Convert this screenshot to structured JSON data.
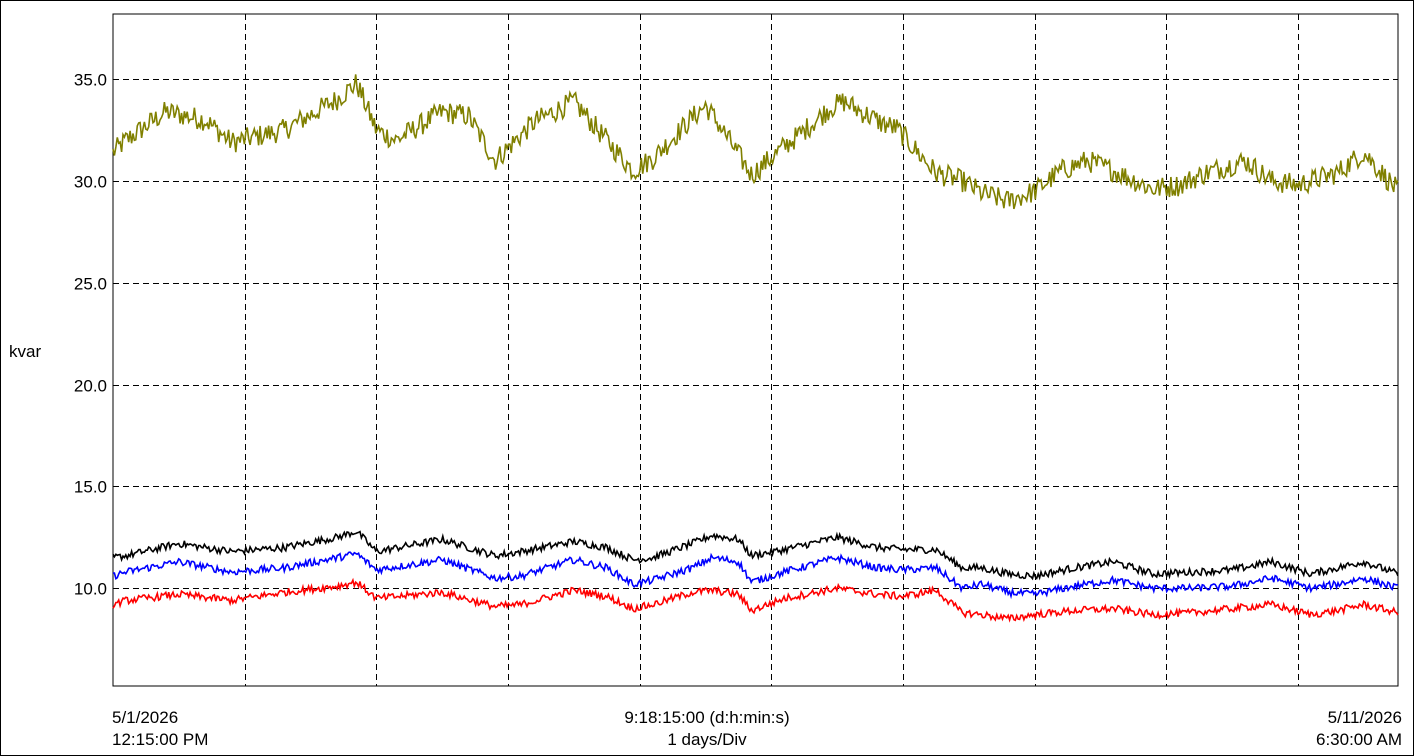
{
  "chart_data": {
    "type": "line",
    "ylabel": "kvar",
    "ylim": [
      5.2,
      38.2
    ],
    "yticks": [
      "35.0",
      "30.0",
      "25.0",
      "20.0",
      "15.0",
      "10.0"
    ],
    "ytick_values": [
      35,
      30,
      25,
      20,
      15,
      10
    ],
    "x_start": {
      "date": "5/1/2026",
      "time": "12:15:00 PM"
    },
    "x_end": {
      "date": "5/11/2026",
      "time": "6:30:00 AM"
    },
    "x_span": "9:18:15:00 (d:h:min:s)",
    "x_division": "1 days/Div",
    "x_span_days": 9.7604,
    "grid": true,
    "series": [
      {
        "color": "#808000",
        "days": [
          0.0,
          0.1,
          0.4,
          0.7,
          0.9,
          1.3,
          1.7,
          1.85,
          2.0,
          2.15,
          2.5,
          2.7,
          2.9,
          3.2,
          3.5,
          3.75,
          3.95,
          4.1,
          4.4,
          4.5,
          4.6,
          4.85,
          5.1,
          5.2,
          5.45,
          5.55,
          5.85,
          5.95,
          6.25,
          6.45,
          6.6,
          6.8,
          7.0,
          7.2,
          7.4,
          7.6,
          7.9,
          8.1,
          8.3,
          8.6,
          8.8,
          9.0,
          9.3,
          9.5,
          9.76
        ],
        "values": [
          31.4,
          32.0,
          33.4,
          33.0,
          31.9,
          32.5,
          34.0,
          34.8,
          32.5,
          32.0,
          33.4,
          33.2,
          31.0,
          32.9,
          33.9,
          32.0,
          30.5,
          31.1,
          33.1,
          33.7,
          32.8,
          30.3,
          31.7,
          32.2,
          33.6,
          33.9,
          32.8,
          32.6,
          30.4,
          30.0,
          29.4,
          29.0,
          29.5,
          30.5,
          31.0,
          30.5,
          29.6,
          29.8,
          30.4,
          31.0,
          30.0,
          29.8,
          30.4,
          31.4,
          29.5
        ]
      },
      {
        "color": "#000000",
        "days": [
          0.0,
          0.1,
          0.5,
          0.9,
          1.3,
          1.7,
          1.85,
          2.0,
          2.5,
          2.9,
          3.1,
          3.5,
          3.75,
          3.95,
          4.1,
          4.4,
          4.55,
          4.75,
          4.85,
          5.1,
          5.5,
          5.8,
          6.0,
          6.25,
          6.45,
          6.6,
          6.8,
          7.0,
          7.3,
          7.6,
          7.9,
          8.2,
          8.5,
          8.8,
          9.1,
          9.3,
          9.5,
          9.76
        ],
        "values": [
          11.5,
          11.6,
          12.2,
          11.8,
          12.0,
          12.5,
          12.8,
          11.8,
          12.4,
          11.6,
          11.8,
          12.3,
          12.0,
          11.4,
          11.5,
          12.2,
          12.6,
          12.4,
          11.6,
          11.9,
          12.5,
          12.0,
          11.9,
          11.9,
          11.0,
          11.0,
          10.7,
          10.6,
          11.0,
          11.3,
          10.7,
          10.8,
          10.9,
          11.3,
          10.7,
          11.0,
          11.3,
          10.7
        ]
      },
      {
        "color": "#0000ff",
        "days": [
          0.0,
          0.1,
          0.5,
          0.9,
          1.3,
          1.7,
          1.85,
          2.0,
          2.5,
          2.9,
          3.1,
          3.5,
          3.75,
          3.95,
          4.1,
          4.4,
          4.55,
          4.75,
          4.85,
          5.1,
          5.5,
          5.8,
          6.0,
          6.25,
          6.45,
          6.6,
          6.8,
          7.0,
          7.3,
          7.6,
          7.9,
          8.2,
          8.5,
          8.8,
          9.1,
          9.3,
          9.5,
          9.76
        ],
        "values": [
          10.6,
          10.8,
          11.3,
          10.8,
          11.0,
          11.5,
          11.7,
          10.9,
          11.4,
          10.5,
          10.6,
          11.4,
          11.0,
          10.2,
          10.4,
          11.0,
          11.5,
          11.3,
          10.3,
          10.8,
          11.5,
          11.0,
          10.9,
          11.0,
          10.0,
          10.2,
          9.8,
          9.7,
          10.1,
          10.4,
          10.0,
          10.0,
          10.1,
          10.5,
          10.0,
          10.2,
          10.5,
          10.0
        ]
      },
      {
        "color": "#ff0000",
        "days": [
          0.0,
          0.1,
          0.5,
          0.9,
          1.3,
          1.7,
          1.85,
          2.0,
          2.5,
          2.9,
          3.1,
          3.5,
          3.75,
          3.95,
          4.1,
          4.4,
          4.55,
          4.75,
          4.85,
          5.1,
          5.5,
          5.8,
          6.0,
          6.25,
          6.45,
          6.6,
          6.8,
          7.0,
          7.3,
          7.6,
          7.9,
          8.2,
          8.5,
          8.8,
          9.1,
          9.3,
          9.5,
          9.76
        ],
        "values": [
          9.2,
          9.4,
          9.7,
          9.4,
          9.8,
          10.1,
          10.3,
          9.5,
          9.8,
          9.1,
          9.2,
          9.9,
          9.6,
          9.0,
          9.2,
          9.8,
          9.9,
          9.7,
          8.9,
          9.5,
          10.0,
          9.7,
          9.6,
          9.9,
          8.8,
          8.7,
          8.5,
          8.7,
          8.9,
          9.0,
          8.7,
          8.8,
          9.0,
          9.2,
          8.7,
          8.9,
          9.2,
          8.8
        ]
      }
    ]
  }
}
